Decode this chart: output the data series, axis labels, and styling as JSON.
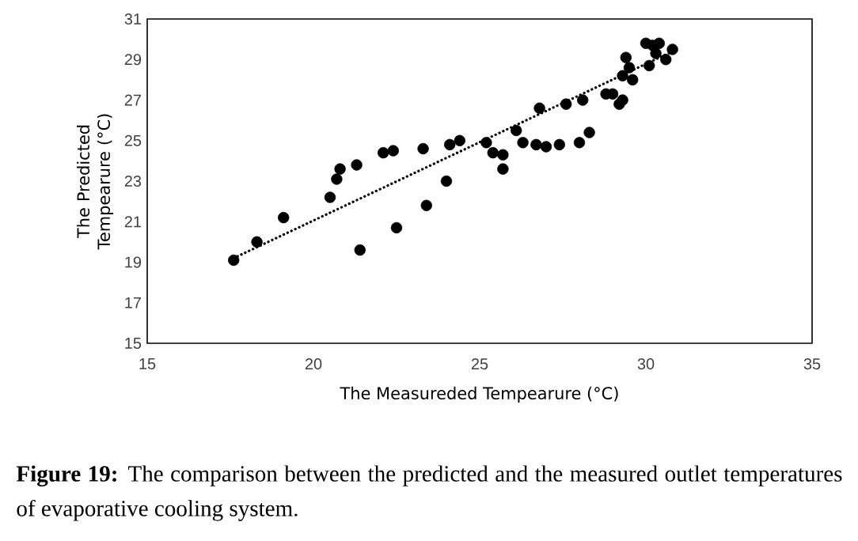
{
  "chart_data": {
    "type": "scatter",
    "xlabel": "The Measureded Tempearure (°C)",
    "ylabel": "The Predicted Tempearure (°C)",
    "xlim": [
      15,
      35
    ],
    "xticks": [
      15,
      20,
      25,
      30,
      35
    ],
    "ylim": [
      15,
      31
    ],
    "yticks": [
      15,
      17,
      19,
      21,
      23,
      25,
      27,
      29,
      31
    ],
    "grid": false,
    "series": [
      {
        "color": "#000000",
        "marker": "circle",
        "x": [
          17.6,
          18.3,
          19.1,
          20.5,
          20.7,
          20.8,
          21.3,
          21.4,
          22.1,
          22.4,
          22.5,
          23.3,
          23.4,
          24.0,
          24.1,
          24.4,
          25.2,
          25.4,
          25.7,
          25.7,
          26.1,
          26.3,
          26.7,
          26.8,
          27.0,
          27.4,
          27.6,
          28.0,
          28.1,
          28.3,
          28.8,
          29.0,
          29.2,
          29.3,
          29.4,
          29.5,
          29.6,
          30.0,
          30.1,
          30.3,
          30.4,
          30.6,
          30.8,
          30.2,
          29.3
        ],
        "values": [
          19.1,
          20.0,
          21.2,
          22.2,
          23.1,
          23.6,
          23.8,
          19.6,
          24.4,
          24.5,
          20.7,
          24.6,
          21.8,
          23.0,
          24.8,
          25.0,
          24.9,
          24.4,
          24.3,
          23.6,
          25.5,
          24.9,
          24.8,
          26.6,
          24.7,
          24.8,
          26.8,
          24.9,
          27.0,
          25.4,
          27.3,
          27.3,
          26.8,
          28.2,
          29.1,
          28.6,
          28.0,
          29.8,
          28.7,
          29.3,
          29.8,
          29.0,
          29.5,
          29.7,
          27.0
        ]
      },
      {
        "type": "line",
        "color": "#000000",
        "line_style": "dotted",
        "marker": "none",
        "x": [
          17.6,
          30.8
        ],
        "values": [
          19.2,
          29.4
        ]
      }
    ],
    "annotations": [
      "**Figure 19:** The comparison between the predicted and the measured outlet temperatures of evaporative cooling system."
    ]
  }
}
